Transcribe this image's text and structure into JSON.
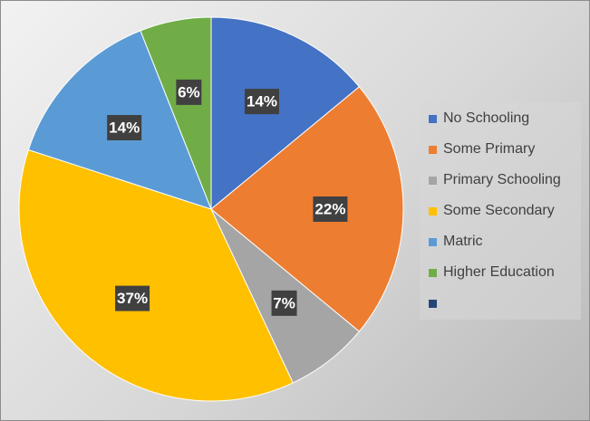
{
  "chart_data": {
    "type": "pie",
    "title": "",
    "legend_position": "right",
    "slices": [
      {
        "label": "No Schooling",
        "value": 14,
        "value_label": "14%",
        "color": "#4472c4"
      },
      {
        "label": "Some Primary",
        "value": 22,
        "value_label": "22%",
        "color": "#ed7d31"
      },
      {
        "label": "Primary Schooling",
        "value": 7,
        "value_label": "7%",
        "color": "#a5a5a5"
      },
      {
        "label": "Some Secondary",
        "value": 37,
        "value_label": "37%",
        "color": "#ffc000"
      },
      {
        "label": "Matric",
        "value": 14,
        "value_label": "14%",
        "color": "#5b9bd5"
      },
      {
        "label": "Higher Education",
        "value": 6,
        "value_label": "6%",
        "color": "#70ad47"
      },
      {
        "label": "",
        "value": 0,
        "value_label": "",
        "color": "#264478"
      }
    ]
  }
}
